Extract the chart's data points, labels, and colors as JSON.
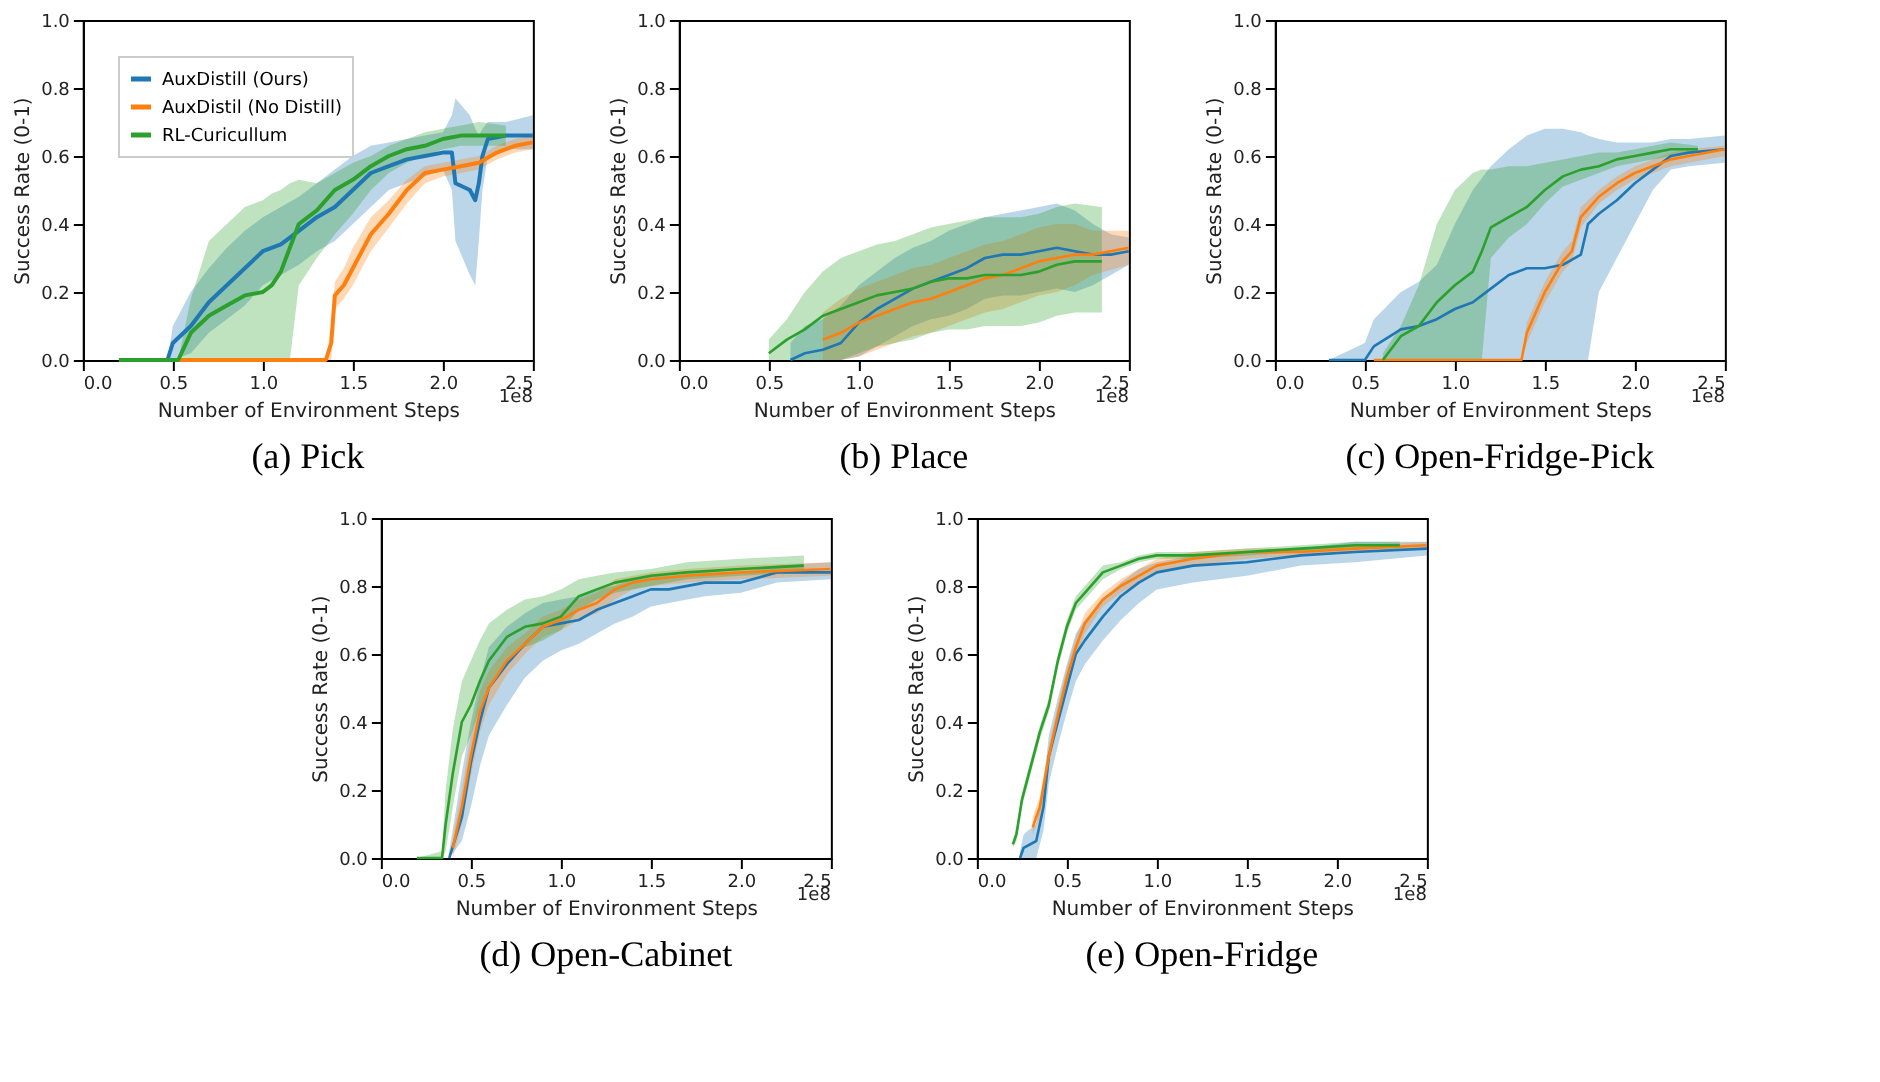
{
  "chart_data": [
    {
      "type": "line",
      "title": "(a) Pick",
      "xlabel": "Number of Environment Steps",
      "ylabel": "Success Rate (0-1)",
      "annotations": [
        "1e8"
      ],
      "xlim": [
        0,
        2.5
      ],
      "ylim": [
        0,
        1
      ],
      "xticks": [
        {
          "value": 0,
          "label": "0.0"
        },
        {
          "value": 0.5,
          "label": "0.5"
        },
        {
          "value": 1,
          "label": "1.0"
        },
        {
          "value": 1.5,
          "label": "1.5"
        },
        {
          "value": 2,
          "label": "2.0"
        },
        {
          "value": 2.5,
          "label": "2.5"
        }
      ],
      "yticks": [
        {
          "value": 0,
          "label": "0.0"
        },
        {
          "value": 0.2,
          "label": "0.2"
        },
        {
          "value": 0.4,
          "label": "0.4"
        },
        {
          "value": 0.6,
          "label": "0.6"
        },
        {
          "value": 0.8,
          "label": "0.8"
        },
        {
          "value": 1,
          "label": "1.0"
        }
      ],
      "grid": false,
      "legend": "top left",
      "series": [
        {
          "name": "AuxDistill (Ours)",
          "color": "#1f77b4",
          "x": [
            0.47,
            0.5,
            0.6,
            0.7,
            0.8,
            0.9,
            1.0,
            1.1,
            1.2,
            1.3,
            1.4,
            1.5,
            1.6,
            1.7,
            1.8,
            1.9,
            2.0,
            2.05,
            2.07,
            2.15,
            2.18,
            2.2,
            2.22,
            2.25,
            2.35,
            2.5
          ],
          "values": [
            0,
            0.05,
            0.1,
            0.17,
            0.22,
            0.27,
            0.32,
            0.34,
            0.38,
            0.42,
            0.45,
            0.5,
            0.55,
            0.57,
            0.59,
            0.6,
            0.61,
            0.61,
            0.52,
            0.5,
            0.47,
            0.52,
            0.6,
            0.65,
            0.66,
            0.66
          ],
          "lower": [
            0,
            0,
            0.02,
            0.08,
            0.12,
            0.16,
            0.22,
            0.25,
            0.28,
            0.32,
            0.35,
            0.4,
            0.45,
            0.5,
            0.52,
            0.54,
            0.56,
            0.5,
            0.35,
            0.25,
            0.22,
            0.35,
            0.5,
            0.6,
            0.62,
            0.62
          ],
          "upper": [
            0,
            0.1,
            0.2,
            0.27,
            0.33,
            0.38,
            0.42,
            0.45,
            0.48,
            0.52,
            0.56,
            0.6,
            0.63,
            0.64,
            0.65,
            0.66,
            0.67,
            0.72,
            0.77,
            0.72,
            0.68,
            0.66,
            0.68,
            0.7,
            0.7,
            0.72
          ]
        },
        {
          "name": "AuxDistil (No Distill)",
          "color": "#ff7f0e",
          "x": [
            0.53,
            1.35,
            1.38,
            1.4,
            1.45,
            1.5,
            1.6,
            1.7,
            1.8,
            1.9,
            2.0,
            2.1,
            2.2,
            2.3,
            2.4,
            2.5
          ],
          "values": [
            0,
            0,
            0.05,
            0.19,
            0.22,
            0.27,
            0.37,
            0.43,
            0.5,
            0.55,
            0.56,
            0.57,
            0.58,
            0.61,
            0.63,
            0.64
          ],
          "lower": [
            0,
            0,
            0,
            0.15,
            0.18,
            0.22,
            0.32,
            0.39,
            0.46,
            0.52,
            0.54,
            0.55,
            0.56,
            0.59,
            0.61,
            0.62
          ],
          "upper": [
            0,
            0,
            0.1,
            0.23,
            0.27,
            0.33,
            0.42,
            0.47,
            0.53,
            0.57,
            0.58,
            0.59,
            0.6,
            0.63,
            0.65,
            0.66
          ]
        },
        {
          "name": "RL-Curicullum",
          "color": "#2ca02c",
          "x": [
            0.2,
            0.53,
            0.6,
            0.7,
            0.8,
            0.9,
            1.0,
            1.05,
            1.1,
            1.15,
            1.2,
            1.3,
            1.4,
            1.5,
            1.6,
            1.7,
            1.8,
            1.9,
            2.0,
            2.1,
            2.2,
            2.35
          ],
          "values": [
            0,
            0,
            0.08,
            0.13,
            0.16,
            0.19,
            0.2,
            0.22,
            0.26,
            0.33,
            0.4,
            0.44,
            0.5,
            0.53,
            0.57,
            0.6,
            0.62,
            0.63,
            0.65,
            0.66,
            0.66,
            0.66
          ],
          "lower": [
            0,
            0,
            0,
            0,
            0,
            0,
            0,
            0,
            0,
            0,
            0.22,
            0.3,
            0.37,
            0.43,
            0.5,
            0.55,
            0.58,
            0.6,
            0.62,
            0.63,
            0.63,
            0.63
          ],
          "upper": [
            0,
            0,
            0.18,
            0.35,
            0.4,
            0.45,
            0.47,
            0.49,
            0.5,
            0.52,
            0.53,
            0.52,
            0.55,
            0.58,
            0.6,
            0.63,
            0.65,
            0.67,
            0.68,
            0.69,
            0.7,
            0.69
          ]
        }
      ]
    },
    {
      "type": "line",
      "title": "(b) Place",
      "xlabel": "Number of Environment Steps",
      "ylabel": "Success Rate (0-1)",
      "annotations": [
        "1e8"
      ],
      "xlim": [
        0,
        2.5
      ],
      "ylim": [
        0,
        1
      ],
      "xticks": [
        {
          "value": 0,
          "label": "0.0"
        },
        {
          "value": 0.5,
          "label": "0.5"
        },
        {
          "value": 1,
          "label": "1.0"
        },
        {
          "value": 1.5,
          "label": "1.5"
        },
        {
          "value": 2,
          "label": "2.0"
        },
        {
          "value": 2.5,
          "label": "2.5"
        }
      ],
      "yticks": [
        {
          "value": 0,
          "label": "0.0"
        },
        {
          "value": 0.2,
          "label": "0.2"
        },
        {
          "value": 0.4,
          "label": "0.4"
        },
        {
          "value": 0.6,
          "label": "0.6"
        },
        {
          "value": 0.8,
          "label": "0.8"
        },
        {
          "value": 1,
          "label": "1.0"
        }
      ],
      "grid": false,
      "series": [
        {
          "color": "#1f77b4",
          "x": [
            0.62,
            0.7,
            0.8,
            0.9,
            1.0,
            1.1,
            1.2,
            1.3,
            1.4,
            1.5,
            1.6,
            1.7,
            1.8,
            1.9,
            2.0,
            2.1,
            2.2,
            2.3,
            2.4,
            2.5
          ],
          "values": [
            0,
            0.02,
            0.03,
            0.05,
            0.11,
            0.15,
            0.18,
            0.21,
            0.23,
            0.25,
            0.27,
            0.3,
            0.31,
            0.31,
            0.32,
            0.33,
            0.32,
            0.31,
            0.31,
            0.32
          ],
          "lower": [
            0,
            0,
            0,
            0,
            0.01,
            0.04,
            0.07,
            0.1,
            0.12,
            0.13,
            0.15,
            0.18,
            0.19,
            0.19,
            0.2,
            0.21,
            0.2,
            0.22,
            0.25,
            0.28
          ],
          "upper": [
            0.05,
            0.1,
            0.12,
            0.16,
            0.22,
            0.26,
            0.3,
            0.33,
            0.35,
            0.38,
            0.4,
            0.42,
            0.43,
            0.44,
            0.45,
            0.46,
            0.44,
            0.4,
            0.37,
            0.36
          ]
        },
        {
          "color": "#ff7f0e",
          "x": [
            0.8,
            0.9,
            1.0,
            1.1,
            1.2,
            1.3,
            1.4,
            1.5,
            1.6,
            1.7,
            1.8,
            1.9,
            2.0,
            2.1,
            2.2,
            2.3,
            2.5
          ],
          "values": [
            0.06,
            0.08,
            0.11,
            0.13,
            0.15,
            0.17,
            0.18,
            0.2,
            0.22,
            0.24,
            0.25,
            0.27,
            0.29,
            0.3,
            0.31,
            0.31,
            0.33
          ],
          "lower": [
            0,
            0,
            0.01,
            0.03,
            0.05,
            0.07,
            0.08,
            0.1,
            0.12,
            0.14,
            0.15,
            0.17,
            0.19,
            0.2,
            0.22,
            0.25,
            0.28
          ],
          "upper": [
            0.14,
            0.18,
            0.21,
            0.23,
            0.25,
            0.27,
            0.28,
            0.3,
            0.32,
            0.34,
            0.35,
            0.37,
            0.39,
            0.4,
            0.4,
            0.38,
            0.38
          ]
        },
        {
          "color": "#2ca02c",
          "x": [
            0.5,
            0.6,
            0.7,
            0.8,
            0.9,
            1.0,
            1.1,
            1.2,
            1.3,
            1.4,
            1.5,
            1.6,
            1.7,
            1.8,
            1.9,
            2.0,
            2.1,
            2.2,
            2.35
          ],
          "values": [
            0.02,
            0.06,
            0.09,
            0.13,
            0.15,
            0.17,
            0.19,
            0.2,
            0.21,
            0.23,
            0.24,
            0.24,
            0.25,
            0.25,
            0.25,
            0.26,
            0.28,
            0.29,
            0.29
          ],
          "lower": [
            0,
            0,
            0,
            0,
            0,
            0.02,
            0.04,
            0.05,
            0.06,
            0.08,
            0.09,
            0.09,
            0.1,
            0.1,
            0.1,
            0.11,
            0.13,
            0.14,
            0.14
          ],
          "upper": [
            0.06,
            0.12,
            0.2,
            0.26,
            0.3,
            0.32,
            0.34,
            0.35,
            0.37,
            0.39,
            0.4,
            0.41,
            0.42,
            0.42,
            0.42,
            0.43,
            0.45,
            0.46,
            0.45
          ]
        }
      ]
    },
    {
      "type": "line",
      "title": "(c) Open-Fridge-Pick",
      "xlabel": "Number of Environment Steps",
      "ylabel": "Success Rate (0-1)",
      "annotations": [
        "1e8"
      ],
      "xlim": [
        0,
        2.5
      ],
      "ylim": [
        0,
        1
      ],
      "xticks": [
        {
          "value": 0,
          "label": "0.0"
        },
        {
          "value": 0.5,
          "label": "0.5"
        },
        {
          "value": 1,
          "label": "1.0"
        },
        {
          "value": 1.5,
          "label": "1.5"
        },
        {
          "value": 2,
          "label": "2.0"
        },
        {
          "value": 2.5,
          "label": "2.5"
        }
      ],
      "yticks": [
        {
          "value": 0,
          "label": "0.0"
        },
        {
          "value": 0.2,
          "label": "0.2"
        },
        {
          "value": 0.4,
          "label": "0.4"
        },
        {
          "value": 0.6,
          "label": "0.6"
        },
        {
          "value": 0.8,
          "label": "0.8"
        },
        {
          "value": 1,
          "label": "1.0"
        }
      ],
      "grid": false,
      "series": [
        {
          "color": "#1f77b4",
          "x": [
            0.3,
            0.5,
            0.55,
            0.7,
            0.8,
            0.9,
            1.0,
            1.1,
            1.2,
            1.3,
            1.4,
            1.5,
            1.6,
            1.7,
            1.74,
            1.8,
            1.9,
            2.0,
            2.1,
            2.2,
            2.3,
            2.5
          ],
          "values": [
            0,
            0,
            0.04,
            0.09,
            0.1,
            0.12,
            0.15,
            0.17,
            0.21,
            0.25,
            0.27,
            0.27,
            0.28,
            0.31,
            0.4,
            0.43,
            0.47,
            0.52,
            0.56,
            0.6,
            0.61,
            0.62
          ],
          "lower": [
            0,
            0,
            0,
            0,
            0,
            0,
            0,
            0,
            0,
            0,
            0,
            0,
            0,
            0,
            0,
            0.2,
            0.3,
            0.4,
            0.5,
            0.56,
            0.57,
            0.58
          ],
          "upper": [
            0,
            0.05,
            0.12,
            0.2,
            0.23,
            0.28,
            0.4,
            0.5,
            0.57,
            0.62,
            0.66,
            0.68,
            0.68,
            0.67,
            0.66,
            0.65,
            0.64,
            0.64,
            0.64,
            0.65,
            0.65,
            0.66
          ]
        },
        {
          "color": "#ff7f0e",
          "x": [
            0.55,
            1.37,
            1.4,
            1.5,
            1.6,
            1.65,
            1.7,
            1.8,
            1.9,
            2.0,
            2.1,
            2.2,
            2.3,
            2.5
          ],
          "values": [
            0,
            0,
            0.08,
            0.2,
            0.29,
            0.32,
            0.42,
            0.48,
            0.52,
            0.55,
            0.57,
            0.59,
            0.6,
            0.62
          ],
          "lower": [
            0,
            0,
            0.05,
            0.17,
            0.26,
            0.29,
            0.39,
            0.46,
            0.5,
            0.53,
            0.55,
            0.57,
            0.58,
            0.6
          ],
          "upper": [
            0,
            0,
            0.11,
            0.23,
            0.32,
            0.35,
            0.45,
            0.5,
            0.54,
            0.57,
            0.59,
            0.61,
            0.62,
            0.63
          ]
        },
        {
          "color": "#2ca02c",
          "x": [
            0.6,
            0.7,
            0.8,
            0.9,
            1.0,
            1.1,
            1.15,
            1.2,
            1.3,
            1.4,
            1.5,
            1.6,
            1.7,
            1.8,
            1.9,
            2.0,
            2.1,
            2.2,
            2.35
          ],
          "values": [
            0,
            0.07,
            0.1,
            0.17,
            0.22,
            0.26,
            0.32,
            0.39,
            0.42,
            0.45,
            0.5,
            0.54,
            0.56,
            0.57,
            0.59,
            0.6,
            0.61,
            0.62,
            0.62
          ],
          "lower": [
            0,
            0,
            0,
            0,
            0,
            0,
            0,
            0.3,
            0.36,
            0.4,
            0.46,
            0.51,
            0.53,
            0.55,
            0.57,
            0.58,
            0.59,
            0.6,
            0.61
          ],
          "upper": [
            0.02,
            0.1,
            0.22,
            0.4,
            0.5,
            0.55,
            0.56,
            0.56,
            0.57,
            0.57,
            0.58,
            0.59,
            0.6,
            0.61,
            0.61,
            0.62,
            0.63,
            0.64,
            0.63
          ]
        }
      ]
    },
    {
      "type": "line",
      "title": "(d) Open-Cabinet",
      "xlabel": "Number of Environment Steps",
      "ylabel": "Success Rate (0-1)",
      "annotations": [
        "1e8"
      ],
      "xlim": [
        0,
        2.5
      ],
      "ylim": [
        0,
        1
      ],
      "xticks": [
        {
          "value": 0,
          "label": "0.0"
        },
        {
          "value": 0.5,
          "label": "0.5"
        },
        {
          "value": 1,
          "label": "1.0"
        },
        {
          "value": 1.5,
          "label": "1.5"
        },
        {
          "value": 2,
          "label": "2.0"
        },
        {
          "value": 2.5,
          "label": "2.5"
        }
      ],
      "yticks": [
        {
          "value": 0,
          "label": "0.0"
        },
        {
          "value": 0.2,
          "label": "0.2"
        },
        {
          "value": 0.4,
          "label": "0.4"
        },
        {
          "value": 0.6,
          "label": "0.6"
        },
        {
          "value": 0.8,
          "label": "0.8"
        },
        {
          "value": 1,
          "label": "1.0"
        }
      ],
      "grid": false,
      "series": [
        {
          "color": "#1f77b4",
          "x": [
            0.38,
            0.45,
            0.5,
            0.55,
            0.6,
            0.7,
            0.8,
            0.9,
            1.0,
            1.1,
            1.2,
            1.3,
            1.4,
            1.5,
            1.6,
            1.8,
            2.0,
            2.2,
            2.5
          ],
          "values": [
            0,
            0.12,
            0.28,
            0.4,
            0.5,
            0.57,
            0.63,
            0.68,
            0.69,
            0.7,
            0.73,
            0.75,
            0.77,
            0.79,
            0.79,
            0.81,
            0.81,
            0.84,
            0.84
          ],
          "lower": [
            0,
            0.05,
            0.15,
            0.27,
            0.36,
            0.45,
            0.53,
            0.58,
            0.61,
            0.63,
            0.66,
            0.69,
            0.71,
            0.74,
            0.75,
            0.77,
            0.78,
            0.81,
            0.82
          ],
          "upper": [
            0.02,
            0.25,
            0.4,
            0.52,
            0.62,
            0.68,
            0.72,
            0.75,
            0.76,
            0.77,
            0.79,
            0.8,
            0.82,
            0.83,
            0.83,
            0.84,
            0.84,
            0.86,
            0.87
          ]
        },
        {
          "color": "#ff7f0e",
          "x": [
            0.4,
            0.45,
            0.5,
            0.55,
            0.6,
            0.7,
            0.8,
            0.9,
            1.0,
            1.1,
            1.2,
            1.3,
            1.4,
            1.5,
            1.7,
            2.0,
            2.5
          ],
          "values": [
            0.03,
            0.15,
            0.3,
            0.43,
            0.5,
            0.58,
            0.63,
            0.68,
            0.7,
            0.73,
            0.75,
            0.79,
            0.81,
            0.82,
            0.83,
            0.84,
            0.85
          ],
          "lower": [
            0,
            0.1,
            0.24,
            0.37,
            0.45,
            0.54,
            0.6,
            0.65,
            0.67,
            0.7,
            0.72,
            0.76,
            0.79,
            0.8,
            0.81,
            0.82,
            0.83
          ],
          "upper": [
            0.06,
            0.2,
            0.36,
            0.49,
            0.55,
            0.62,
            0.66,
            0.71,
            0.73,
            0.76,
            0.78,
            0.82,
            0.83,
            0.84,
            0.85,
            0.86,
            0.87
          ]
        },
        {
          "color": "#2ca02c",
          "x": [
            0.2,
            0.34,
            0.36,
            0.4,
            0.45,
            0.5,
            0.55,
            0.6,
            0.7,
            0.8,
            0.9,
            1.0,
            1.1,
            1.2,
            1.3,
            1.5,
            1.7,
            2.0,
            2.35
          ],
          "values": [
            0,
            0,
            0.1,
            0.25,
            0.4,
            0.45,
            0.52,
            0.58,
            0.65,
            0.68,
            0.69,
            0.71,
            0.77,
            0.79,
            0.81,
            0.83,
            0.84,
            0.85,
            0.86
          ],
          "lower": [
            0,
            0,
            0.02,
            0.15,
            0.3,
            0.36,
            0.44,
            0.5,
            0.58,
            0.62,
            0.64,
            0.67,
            0.73,
            0.76,
            0.78,
            0.8,
            0.82,
            0.83,
            0.84
          ],
          "upper": [
            0,
            0.02,
            0.2,
            0.38,
            0.52,
            0.58,
            0.64,
            0.69,
            0.73,
            0.76,
            0.77,
            0.79,
            0.82,
            0.83,
            0.84,
            0.85,
            0.87,
            0.88,
            0.89
          ]
        }
      ]
    },
    {
      "type": "line",
      "title": "(e) Open-Fridge",
      "xlabel": "Number of Environment Steps",
      "ylabel": "Success Rate (0-1)",
      "annotations": [
        "1e8"
      ],
      "xlim": [
        0,
        2.5
      ],
      "ylim": [
        0,
        1
      ],
      "xticks": [
        {
          "value": 0,
          "label": "0.0"
        },
        {
          "value": 0.5,
          "label": "0.5"
        },
        {
          "value": 1,
          "label": "1.0"
        },
        {
          "value": 1.5,
          "label": "1.5"
        },
        {
          "value": 2,
          "label": "2.0"
        },
        {
          "value": 2.5,
          "label": "2.5"
        }
      ],
      "yticks": [
        {
          "value": 0,
          "label": "0.0"
        },
        {
          "value": 0.2,
          "label": "0.2"
        },
        {
          "value": 0.4,
          "label": "0.4"
        },
        {
          "value": 0.6,
          "label": "0.6"
        },
        {
          "value": 0.8,
          "label": "0.8"
        },
        {
          "value": 1,
          "label": "1.0"
        }
      ],
      "grid": false,
      "series": [
        {
          "color": "#1f77b4",
          "x": [
            0.24,
            0.26,
            0.33,
            0.37,
            0.4,
            0.45,
            0.5,
            0.55,
            0.6,
            0.7,
            0.8,
            0.9,
            1.0,
            1.2,
            1.5,
            1.8,
            2.1,
            2.5
          ],
          "values": [
            0,
            0.03,
            0.05,
            0.15,
            0.3,
            0.4,
            0.5,
            0.6,
            0.64,
            0.71,
            0.77,
            0.81,
            0.84,
            0.86,
            0.87,
            0.89,
            0.9,
            0.91
          ],
          "lower": [
            0,
            0,
            0,
            0.08,
            0.22,
            0.33,
            0.43,
            0.52,
            0.57,
            0.64,
            0.7,
            0.75,
            0.79,
            0.81,
            0.83,
            0.86,
            0.87,
            0.89
          ],
          "upper": [
            0.02,
            0.07,
            0.1,
            0.22,
            0.36,
            0.47,
            0.57,
            0.66,
            0.7,
            0.76,
            0.81,
            0.85,
            0.87,
            0.89,
            0.9,
            0.91,
            0.93,
            0.93
          ]
        },
        {
          "color": "#ff7f0e",
          "x": [
            0.31,
            0.35,
            0.4,
            0.45,
            0.5,
            0.55,
            0.6,
            0.7,
            0.8,
            0.9,
            1.0,
            1.2,
            1.5,
            1.8,
            2.1,
            2.5
          ],
          "values": [
            0.09,
            0.15,
            0.3,
            0.42,
            0.53,
            0.62,
            0.69,
            0.76,
            0.8,
            0.83,
            0.86,
            0.88,
            0.9,
            0.9,
            0.91,
            0.92
          ],
          "lower": [
            0.07,
            0.12,
            0.27,
            0.39,
            0.5,
            0.59,
            0.66,
            0.74,
            0.78,
            0.81,
            0.84,
            0.86,
            0.88,
            0.89,
            0.9,
            0.91
          ],
          "upper": [
            0.12,
            0.18,
            0.33,
            0.45,
            0.56,
            0.65,
            0.72,
            0.78,
            0.82,
            0.85,
            0.88,
            0.9,
            0.91,
            0.91,
            0.92,
            0.93
          ]
        },
        {
          "color": "#2ca02c",
          "x": [
            0.2,
            0.22,
            0.25,
            0.3,
            0.35,
            0.4,
            0.45,
            0.5,
            0.55,
            0.6,
            0.7,
            0.8,
            0.9,
            1.0,
            1.2,
            1.5,
            1.8,
            2.1,
            2.35
          ],
          "values": [
            0.04,
            0.07,
            0.17,
            0.27,
            0.37,
            0.45,
            0.58,
            0.68,
            0.75,
            0.78,
            0.84,
            0.86,
            0.88,
            0.89,
            0.89,
            0.9,
            0.91,
            0.92,
            0.92
          ],
          "lower": [
            0.03,
            0.05,
            0.15,
            0.25,
            0.35,
            0.43,
            0.56,
            0.66,
            0.73,
            0.76,
            0.82,
            0.85,
            0.87,
            0.88,
            0.88,
            0.89,
            0.9,
            0.91,
            0.91
          ],
          "upper": [
            0.05,
            0.09,
            0.19,
            0.29,
            0.39,
            0.47,
            0.6,
            0.7,
            0.77,
            0.8,
            0.86,
            0.87,
            0.89,
            0.9,
            0.9,
            0.91,
            0.92,
            0.93,
            0.93
          ]
        }
      ]
    }
  ]
}
